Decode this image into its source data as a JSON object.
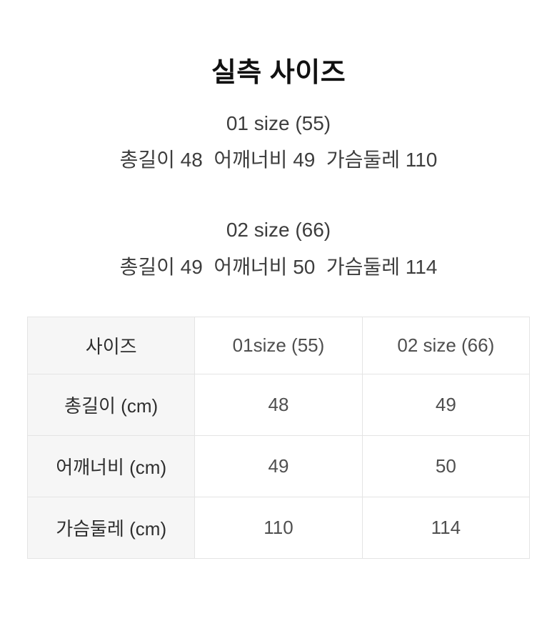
{
  "page": {
    "background": "#ffffff"
  },
  "title": "실측 사이즈",
  "sections": [
    {
      "heading": "01 size (55)",
      "measurements": "총길이 48  어깨너비 49  가슴둘레 110"
    },
    {
      "heading": "02 size (66)",
      "measurements": "총길이 49  어깨너비 50  가슴둘레 114"
    }
  ],
  "size_table": {
    "header": [
      "사이즈",
      "01size (55)",
      "02 size (66)"
    ],
    "rows": [
      {
        "label": "총길이 (cm)",
        "values": [
          "48",
          "49"
        ]
      },
      {
        "label": "어깨너비 (cm)",
        "values": [
          "49",
          "50"
        ]
      },
      {
        "label": "가슴둘레 (cm)",
        "values": [
          "110",
          "114"
        ]
      }
    ],
    "colors": {
      "label_col_bg": "#f6f6f6",
      "border": "#e4e4e4",
      "label_text": "#2e2e2e",
      "value_text": "#4f4f4f"
    }
  }
}
